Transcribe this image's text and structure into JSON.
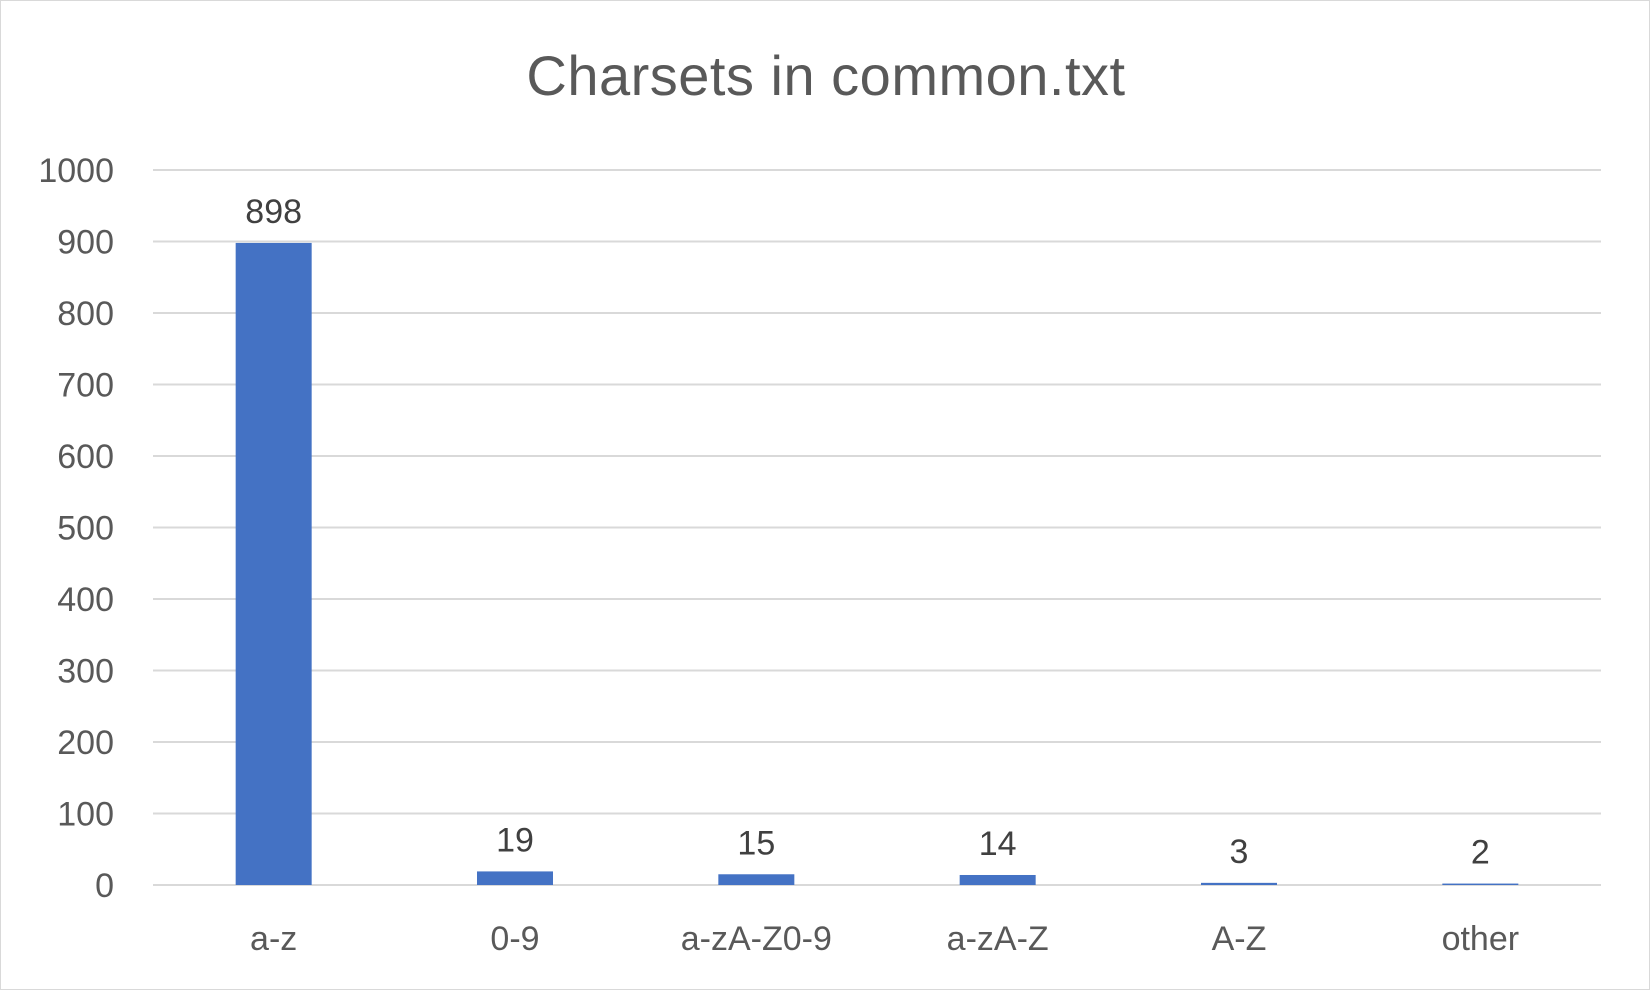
{
  "chart_data": {
    "type": "bar",
    "title": "Charsets in common.txt",
    "categories": [
      "a-z",
      "0-9",
      "a-zA-Z0-9",
      "a-zA-Z",
      "A-Z",
      "other"
    ],
    "values": [
      898,
      19,
      15,
      14,
      3,
      2
    ],
    "data_labels": [
      "898",
      "19",
      "15",
      "14",
      "3",
      "2"
    ],
    "xlabel": "",
    "ylabel": "",
    "ylim": [
      0,
      1000
    ],
    "yticks": [
      0,
      100,
      200,
      300,
      400,
      500,
      600,
      700,
      800,
      900,
      1000
    ],
    "grid": true,
    "legend": "none",
    "colors": {
      "bar": "#4472c4",
      "grid": "#d9d9d9",
      "axis_text": "#595959",
      "label_text": "#404040"
    }
  }
}
